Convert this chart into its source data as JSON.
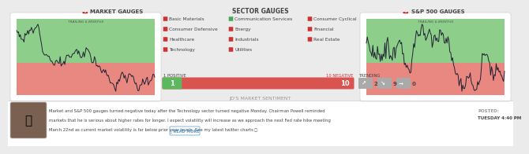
{
  "bg_color": "#ebebeb",
  "panel_bg": "#ffffff",
  "title_market": "MARKET GAUGES",
  "title_sector": "SECTOR GAUGES",
  "title_sp500": "S&P 500 GAUGES",
  "chart_label": "TRAILING 6-MONTHS",
  "chart_green": "#8dcf8a",
  "chart_red": "#e88880",
  "chart_line": "#222233",
  "sector_left": [
    "Basic Materials",
    "Consumer Defensive",
    "Healthcare",
    "Technology"
  ],
  "sector_mid": [
    "Communication Services",
    "Energy",
    "Industrials",
    "Utilities"
  ],
  "sector_right": [
    "Consumer Cyclical",
    "Financial",
    "Real Estate"
  ],
  "sector_colors_left": [
    "red",
    "red",
    "red",
    "red"
  ],
  "sector_colors_mid": [
    "green",
    "red",
    "red",
    "red"
  ],
  "sector_colors_right": [
    "red",
    "red",
    "red"
  ],
  "positive_label": "1 POSITIVE",
  "negative_label": "10 NEGATIVE",
  "positive_val": 1,
  "negative_val": 10,
  "trending_label": "TRENDING",
  "trending_up": 2,
  "trending_down": 9,
  "trending_flat": 0,
  "sentiment_title": "JD'S MARKET SENTIMENT",
  "sentiment_line1": "Market and S&P 500 gauges turned negative today after the Technology sector turned negative Monday. Chairman Powell reminded",
  "sentiment_line2": "markets that he is serious about higher rates for longer. I expect volatility will increase as we approach the next Fed rate hike meeting",
  "sentiment_line3": "March 22nd as current market volatility is far below prior year levels. See my latest twitter charts 👍",
  "posted_label": "POSTED:",
  "posted_date": "TUESDAY 4:40 PM",
  "read_more": "📤 READ MORE",
  "divider_color": "#cccccc",
  "text_color_dark": "#444444",
  "text_color_light": "#999999",
  "text_color_red": "#cc3333",
  "text_color_green": "#44aa55",
  "text_color_blue": "#5599cc",
  "gauge_bar_green": "#5cb85c",
  "gauge_bar_red": "#d9534f",
  "trending_box_color": "#aaaaaa",
  "header_icon_color": "#cc3333"
}
